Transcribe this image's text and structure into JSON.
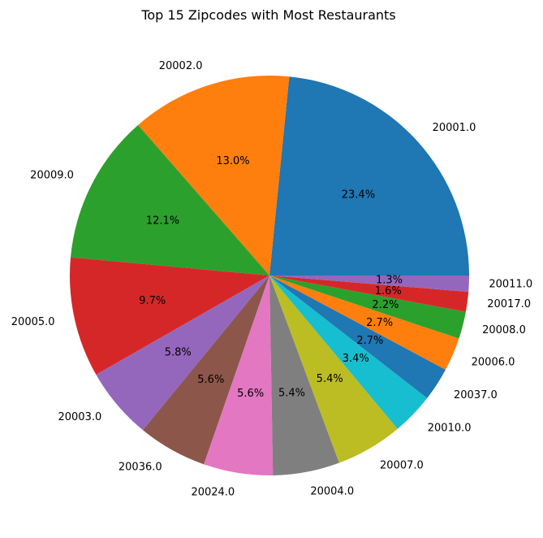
{
  "chart_data": {
    "type": "pie",
    "title": "Top 15 Zipcodes with Most Restaurants",
    "start_angle_deg": 0,
    "direction": "counterclockwise",
    "slices": [
      {
        "label": "20001.0",
        "pct_label": "23.4%",
        "value": 23.4,
        "color": "#1f77b4"
      },
      {
        "label": "20002.0",
        "pct_label": "13.0%",
        "value": 13.0,
        "color": "#ff7f0e"
      },
      {
        "label": "20009.0",
        "pct_label": "12.1%",
        "value": 12.1,
        "color": "#2ca02c"
      },
      {
        "label": "20005.0",
        "pct_label": "9.7%",
        "value": 9.7,
        "color": "#d62728"
      },
      {
        "label": "20003.0",
        "pct_label": "5.8%",
        "value": 5.8,
        "color": "#9467bd"
      },
      {
        "label": "20036.0",
        "pct_label": "5.6%",
        "value": 5.6,
        "color": "#8c564b"
      },
      {
        "label": "20024.0",
        "pct_label": "5.6%",
        "value": 5.6,
        "color": "#e377c2"
      },
      {
        "label": "20004.0",
        "pct_label": "5.4%",
        "value": 5.4,
        "color": "#7f7f7f"
      },
      {
        "label": "20007.0",
        "pct_label": "5.4%",
        "value": 5.4,
        "color": "#bcbd22"
      },
      {
        "label": "20010.0",
        "pct_label": "3.4%",
        "value": 3.4,
        "color": "#17becf"
      },
      {
        "label": "20037.0",
        "pct_label": "2.7%",
        "value": 2.7,
        "color": "#1f77b4"
      },
      {
        "label": "20006.0",
        "pct_label": "2.7%",
        "value": 2.7,
        "color": "#ff7f0e"
      },
      {
        "label": "20008.0",
        "pct_label": "2.2%",
        "value": 2.2,
        "color": "#2ca02c"
      },
      {
        "label": "20017.0",
        "pct_label": "1.6%",
        "value": 1.6,
        "color": "#d62728"
      },
      {
        "label": "20011.0",
        "pct_label": "1.3%",
        "value": 1.3,
        "color": "#9467bd"
      }
    ]
  }
}
